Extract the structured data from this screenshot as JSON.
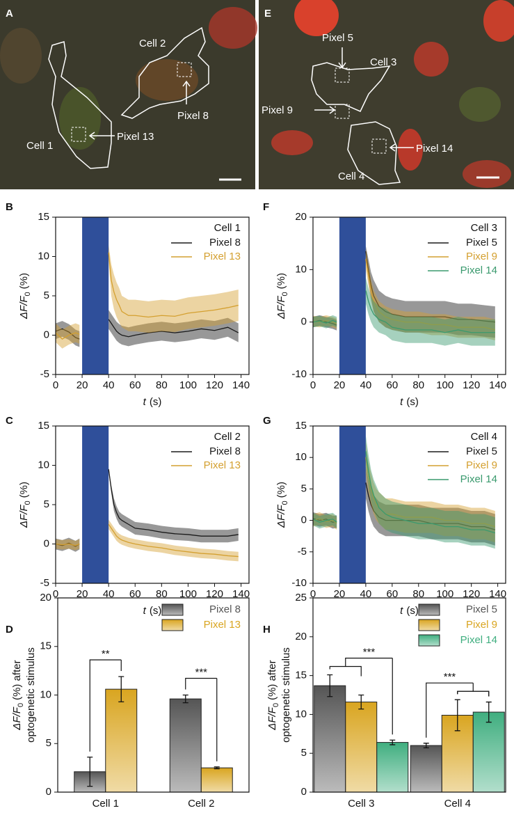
{
  "chart_data": [
    {
      "type": "image",
      "label": "A",
      "texts": [
        "Cell 2",
        "Pixel 8",
        "Cell 1",
        "Pixel 13"
      ]
    },
    {
      "type": "image",
      "label": "E",
      "texts": [
        "Pixel 5",
        "Cell 3",
        "Pixel 9",
        "Pixel 14",
        "Cell 4"
      ]
    },
    {
      "type": "line",
      "label": "B",
      "legend_title": "Cell 1",
      "ylabel_parts": [
        "ΔF/F",
        "0",
        "(%)"
      ],
      "xlabel_parts": [
        "t",
        "(s)"
      ],
      "xlim": [
        0,
        146
      ],
      "xticks": [
        0,
        20,
        40,
        60,
        80,
        100,
        120,
        140
      ],
      "ylim": [
        -5,
        15
      ],
      "yticks": [
        -5,
        0,
        5,
        10,
        15
      ],
      "highlight": [
        20,
        40
      ],
      "highlight_color": "#2f4f9a",
      "x": [
        0,
        5,
        10,
        15,
        18,
        30,
        40,
        42,
        44,
        46,
        48,
        50,
        55,
        60,
        70,
        80,
        90,
        100,
        110,
        120,
        130,
        138
      ],
      "series": [
        {
          "name": "Pixel 8",
          "color": "#1a1a1a",
          "values": [
            0.5,
            0.8,
            0.4,
            -0.3,
            -0.5,
            null,
            2,
            1.5,
            1,
            0.5,
            0.2,
            0,
            -0.2,
            0,
            0.3,
            0.5,
            0.3,
            0.5,
            0.8,
            0.6,
            1,
            0.3
          ],
          "errors": [
            1,
            1,
            1,
            1,
            1,
            null,
            1.2,
            1.2,
            1.2,
            1.2,
            1.2,
            1.2,
            1.2,
            1.2,
            1.2,
            1.2,
            1.2,
            1.2,
            1.2,
            1.2,
            1.2,
            1.2
          ]
        },
        {
          "name": "Pixel 13",
          "color": "#d4a030",
          "values": [
            0.3,
            -0.5,
            0,
            0.3,
            0.1,
            null,
            10.5,
            7,
            5.5,
            4.5,
            3.8,
            3,
            2.5,
            2.5,
            2.3,
            2.5,
            2.4,
            2.8,
            3,
            3.2,
            3.5,
            3.8
          ],
          "errors": [
            1.2,
            1.2,
            1.2,
            1.2,
            1.2,
            null,
            1,
            2,
            2.2,
            2.2,
            2.2,
            2,
            2,
            2,
            2,
            2,
            2,
            2,
            2,
            2,
            2,
            2
          ]
        }
      ]
    },
    {
      "type": "line",
      "label": "F",
      "legend_title": "Cell 3",
      "ylabel_parts": [
        "ΔF/F",
        "0",
        "(%)"
      ],
      "xlabel_parts": [
        "t",
        "(s)"
      ],
      "xlim": [
        0,
        146
      ],
      "xticks": [
        0,
        20,
        40,
        60,
        80,
        100,
        120,
        140
      ],
      "ylim": [
        -10,
        20
      ],
      "yticks": [
        -10,
        0,
        10,
        20
      ],
      "highlight": [
        20,
        40
      ],
      "highlight_color": "#2f4f9a",
      "x": [
        0,
        5,
        10,
        15,
        18,
        30,
        40,
        42,
        44,
        46,
        48,
        50,
        55,
        60,
        70,
        80,
        90,
        100,
        110,
        120,
        130,
        138
      ],
      "series": [
        {
          "name": "Pixel 5",
          "color": "#1a1a1a",
          "values": [
            0,
            0.3,
            0,
            -0.3,
            -0.6,
            null,
            13.5,
            10,
            7,
            5,
            4,
            3,
            2,
            1.5,
            1,
            1,
            1,
            1,
            0.5,
            0.5,
            0.2,
            0
          ],
          "errors": [
            1,
            1,
            1,
            1,
            1,
            null,
            1,
            2,
            2.5,
            3,
            3,
            3,
            3,
            3,
            3,
            3,
            3,
            3,
            3,
            3,
            3,
            3
          ]
        },
        {
          "name": "Pixel 9",
          "color": "#d4a030",
          "values": [
            0.2,
            0,
            0.3,
            0,
            -0.3,
            null,
            12,
            9,
            6,
            4,
            3,
            2,
            1,
            0.5,
            0,
            0,
            -0.5,
            -0.5,
            -1,
            -1,
            -1,
            -1.5
          ],
          "errors": [
            1,
            1,
            1,
            1,
            1,
            null,
            2,
            2,
            2,
            2,
            2,
            2,
            2,
            2,
            2,
            2,
            2,
            2,
            2,
            2,
            2,
            2
          ]
        },
        {
          "name": "Pixel 14",
          "color": "#3a9a6e",
          "values": [
            0,
            0.2,
            -0.2,
            0.3,
            0,
            null,
            6,
            4,
            2.5,
            1.5,
            1,
            0.5,
            0,
            -1,
            -1.5,
            -1.5,
            -1.5,
            -2,
            -1.5,
            -2,
            -2,
            -2
          ],
          "errors": [
            1,
            1,
            1,
            1,
            1,
            null,
            2.5,
            2.5,
            2.5,
            2.5,
            2.5,
            2.5,
            2.5,
            2.5,
            2.5,
            2.5,
            2.5,
            2.5,
            2.5,
            2.5,
            2.5,
            2.5
          ]
        }
      ]
    },
    {
      "type": "line",
      "label": "C",
      "legend_title": "Cell 2",
      "ylabel_parts": [
        "ΔF/F",
        "0",
        "(%)"
      ],
      "xlabel_parts": [
        "t",
        "(s)"
      ],
      "xlim": [
        0,
        146
      ],
      "xticks": [
        0,
        20,
        40,
        60,
        80,
        100,
        120,
        140
      ],
      "ylim": [
        -5,
        15
      ],
      "yticks": [
        -5,
        0,
        5,
        10,
        15
      ],
      "highlight": [
        20,
        40
      ],
      "highlight_color": "#2f4f9a",
      "x": [
        0,
        5,
        10,
        15,
        18,
        30,
        40,
        42,
        44,
        46,
        48,
        50,
        55,
        60,
        70,
        80,
        90,
        100,
        110,
        120,
        130,
        138
      ],
      "series": [
        {
          "name": "Pixel 8",
          "color": "#1a1a1a",
          "values": [
            0,
            -0.2,
            0.1,
            -0.3,
            0,
            null,
            9.5,
            7,
            5,
            4,
            3.3,
            3,
            2.5,
            2,
            1.8,
            1.5,
            1.3,
            1.2,
            1,
            1,
            1,
            1.2
          ],
          "errors": [
            0.7,
            0.7,
            0.7,
            0.7,
            0.7,
            null,
            0.2,
            0.5,
            0.8,
            0.8,
            0.8,
            0.8,
            0.8,
            0.8,
            0.8,
            0.8,
            0.8,
            0.8,
            0.8,
            0.8,
            0.8,
            0.8
          ]
        },
        {
          "name": "Pixel 13",
          "color": "#d4a030",
          "values": [
            0,
            -0.1,
            0,
            -0.2,
            0,
            null,
            2.5,
            2,
            1.5,
            1,
            0.7,
            0.5,
            0.2,
            0,
            -0.3,
            -0.5,
            -0.8,
            -1,
            -1.2,
            -1.3,
            -1.5,
            -1.6
          ],
          "errors": [
            0.6,
            0.6,
            0.6,
            0.6,
            0.6,
            null,
            0.6,
            0.6,
            0.6,
            0.6,
            0.6,
            0.6,
            0.6,
            0.6,
            0.6,
            0.6,
            0.6,
            0.6,
            0.6,
            0.6,
            0.6,
            0.6
          ]
        }
      ]
    },
    {
      "type": "line",
      "label": "G",
      "legend_title": "Cell 4",
      "ylabel_parts": [
        "ΔF/F",
        "0",
        "(%)"
      ],
      "xlabel_parts": [
        "t",
        "(s)"
      ],
      "xlim": [
        0,
        146
      ],
      "xticks": [
        0,
        20,
        40,
        60,
        80,
        100,
        120,
        140
      ],
      "ylim": [
        -10,
        15
      ],
      "yticks": [
        -10,
        -5,
        0,
        5,
        10,
        15
      ],
      "highlight": [
        20,
        40
      ],
      "highlight_color": "#2f4f9a",
      "x": [
        0,
        5,
        10,
        15,
        18,
        30,
        40,
        42,
        44,
        46,
        48,
        50,
        55,
        60,
        70,
        80,
        90,
        100,
        110,
        120,
        130,
        138
      ],
      "series": [
        {
          "name": "Pixel 5",
          "color": "#1a1a1a",
          "values": [
            0.3,
            0,
            0.2,
            -0.3,
            -0.2,
            null,
            6,
            4,
            2.5,
            1.5,
            1,
            0.5,
            0,
            0,
            0,
            0,
            -0.5,
            -0.5,
            -0.5,
            -1,
            -1,
            -1.5
          ],
          "errors": [
            1,
            1,
            1,
            1,
            1,
            null,
            2.5,
            2.5,
            2.5,
            2.5,
            2.5,
            2.5,
            2.5,
            2.5,
            2.5,
            2.5,
            2.5,
            2.5,
            2.5,
            2.5,
            2.5,
            2.5
          ]
        },
        {
          "name": "Pixel 9",
          "color": "#d4a030",
          "values": [
            0,
            0.3,
            -0.2,
            0,
            -0.5,
            null,
            10,
            7,
            5,
            3.5,
            2.5,
            2,
            1,
            1,
            0.5,
            0.5,
            0.5,
            0,
            0,
            -0.5,
            -0.5,
            -1
          ],
          "errors": [
            1,
            1,
            1,
            1,
            1,
            null,
            2.5,
            2.5,
            2.5,
            2.5,
            2.5,
            2.5,
            2.5,
            2.5,
            2.5,
            2.5,
            2.5,
            2.5,
            2.5,
            2.5,
            2.5,
            2.5
          ]
        },
        {
          "name": "Pixel 14",
          "color": "#3a9a6e",
          "values": [
            0.2,
            -0.3,
            0,
            0.2,
            -0.3,
            null,
            11,
            8,
            5.5,
            4,
            3,
            2,
            1,
            0.5,
            0,
            -0.5,
            -0.5,
            -1,
            -1,
            -1.5,
            -1.5,
            -2
          ],
          "errors": [
            1,
            1,
            1,
            1,
            1,
            null,
            2.5,
            2.5,
            2.5,
            2.5,
            2.5,
            2.5,
            2.5,
            2.5,
            2.5,
            2.5,
            2.5,
            2.5,
            2.5,
            2.5,
            2.5,
            2.5
          ]
        }
      ]
    },
    {
      "type": "bar",
      "label": "D",
      "ylabel_parts": [
        "ΔF/F",
        "0",
        "(%) after"
      ],
      "ylabel_line2": "optogenetic stimulus",
      "categories": [
        "Cell 1",
        "Cell 2"
      ],
      "ylim": [
        0,
        20
      ],
      "yticks": [
        0,
        5,
        10,
        15,
        20
      ],
      "annotations": [
        "**",
        "***"
      ],
      "series": [
        {
          "name": "Pixel 8",
          "color": "#555555",
          "values": [
            2.1,
            9.6
          ],
          "errors": [
            1.5,
            0.4
          ]
        },
        {
          "name": "Pixel 13",
          "color": "#d9a520",
          "values": [
            10.6,
            2.5
          ],
          "errors": [
            1.3,
            0.1
          ]
        }
      ]
    },
    {
      "type": "bar",
      "label": "H",
      "ylabel_parts": [
        "ΔF/F",
        "0",
        "(%) after"
      ],
      "ylabel_line2": "optogenetic stimulus",
      "categories": [
        "Cell 3",
        "Cell 4"
      ],
      "ylim": [
        0,
        25
      ],
      "yticks": [
        0,
        5,
        10,
        15,
        20,
        25
      ],
      "annotations": [
        "***",
        "***"
      ],
      "series": [
        {
          "name": "Pixel 5",
          "color": "#555555",
          "values": [
            13.7,
            6.0
          ],
          "errors": [
            1.4,
            0.3
          ]
        },
        {
          "name": "Pixel 9",
          "color": "#d9a520",
          "values": [
            11.6,
            9.9
          ],
          "errors": [
            0.9,
            2.0
          ]
        },
        {
          "name": "Pixel 14",
          "color": "#3fae7f",
          "values": [
            6.4,
            10.3
          ],
          "errors": [
            0.3,
            1.3
          ]
        }
      ]
    }
  ]
}
